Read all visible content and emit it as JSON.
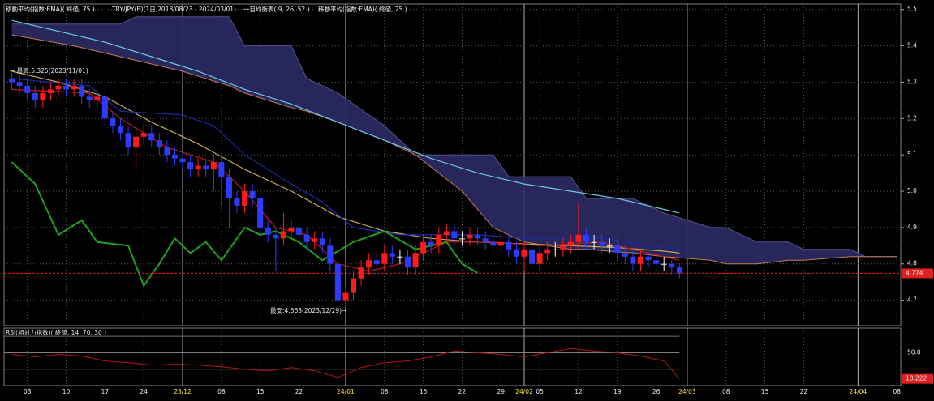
{
  "chart_data": {
    "type": "candlestick",
    "legend": [
      "移動平均(指数:EMA)( 終値, 75 )",
      "TRY/JPY(B)(1日,2018/08/23 - 2024/03/01)",
      "一目均衡表( 9, 26, 52 )",
      "移動平均(指数:EMA)( 終値, 25 )"
    ],
    "high_note": "← 最高:5.325(2023/11/01)",
    "low_note": "最安:4.663(2023/12/29)→",
    "xlim": [
      -1,
      114.5
    ],
    "ylim": [
      4.63,
      5.515
    ],
    "xticks": [
      {
        "value": 2,
        "label": "03"
      },
      {
        "value": 7,
        "label": "10"
      },
      {
        "value": 12,
        "label": "17"
      },
      {
        "value": 17,
        "label": "24"
      },
      {
        "value": 22,
        "label": "23/12"
      },
      {
        "value": 27,
        "label": "08"
      },
      {
        "value": 32,
        "label": "15"
      },
      {
        "value": 37,
        "label": "22"
      },
      {
        "value": 43,
        "label": "24/01"
      },
      {
        "value": 48,
        "label": "08"
      },
      {
        "value": 53,
        "label": "15"
      },
      {
        "value": 58,
        "label": "22"
      },
      {
        "value": 63,
        "label": "29"
      },
      {
        "value": 66,
        "label": "24/02"
      },
      {
        "value": 68,
        "label": "05"
      },
      {
        "value": 73,
        "label": "12"
      },
      {
        "value": 78,
        "label": "19"
      },
      {
        "value": 83,
        "label": "26"
      },
      {
        "value": 87,
        "label": "24/03"
      },
      {
        "value": 92,
        "label": "08"
      },
      {
        "value": 97,
        "label": "15"
      },
      {
        "value": 102,
        "label": "22"
      },
      {
        "value": 109,
        "label": "24/04"
      },
      {
        "value": 114,
        "label": "08"
      }
    ],
    "major_xticks": [
      22,
      43,
      66,
      87,
      109
    ],
    "yticks": [
      5.5,
      5.4,
      5.3,
      5.2,
      5.1,
      {
        "value": 5,
        "label": "5.0"
      },
      4.9,
      4.8,
      4.7
    ],
    "grid": true,
    "candles": {
      "up_color": "#ff1a1a",
      "down_color": "#2b3cff",
      "open": [
        5.31,
        5.3,
        5.29,
        5.27,
        5.25,
        5.27,
        5.28,
        5.29,
        5.28,
        5.29,
        5.26,
        5.25,
        5.26,
        5.2,
        5.18,
        5.16,
        5.12,
        5.15,
        5.16,
        5.14,
        5.12,
        5.1,
        5.09,
        5.08,
        5.06,
        5.07,
        5.06,
        5.08,
        5.04,
        4.98,
        4.96,
        5.0,
        4.98,
        4.9,
        4.88,
        4.87,
        4.89,
        4.9,
        4.88,
        4.86,
        4.87,
        4.85,
        4.8,
        4.7,
        4.72,
        4.76,
        4.79,
        4.81,
        4.8,
        4.83,
        4.82,
        4.82,
        4.79,
        4.83,
        4.86,
        4.85,
        4.88,
        4.89,
        4.87,
        4.87,
        4.88,
        4.87,
        4.86,
        4.85,
        4.86,
        4.84,
        4.82,
        4.84,
        4.8,
        4.83,
        4.84,
        4.84,
        4.85,
        4.86,
        4.88,
        4.86,
        4.86,
        4.85,
        4.85,
        4.83,
        4.82,
        4.8,
        4.82,
        4.81,
        4.8,
        4.8,
        4.79
      ],
      "high": [
        5.325,
        5.32,
        5.31,
        5.29,
        5.29,
        5.3,
        5.31,
        5.31,
        5.31,
        5.31,
        5.28,
        5.28,
        5.28,
        5.22,
        5.2,
        5.18,
        5.17,
        5.18,
        5.18,
        5.16,
        5.14,
        5.12,
        5.11,
        5.1,
        5.09,
        5.09,
        5.1,
        5.1,
        5.06,
        5.0,
        5.02,
        5.02,
        5.0,
        4.92,
        4.9,
        4.94,
        4.92,
        4.92,
        4.9,
        4.89,
        4.89,
        4.87,
        4.82,
        4.74,
        4.78,
        4.81,
        4.83,
        4.83,
        4.85,
        4.85,
        4.84,
        4.84,
        4.85,
        4.88,
        4.88,
        4.9,
        4.91,
        4.91,
        4.89,
        4.9,
        4.9,
        4.89,
        4.88,
        4.88,
        4.88,
        4.86,
        4.86,
        4.86,
        4.85,
        4.86,
        4.86,
        4.87,
        4.88,
        4.97,
        4.9,
        4.88,
        4.88,
        4.87,
        4.87,
        4.85,
        4.84,
        4.84,
        4.83,
        4.83,
        4.82,
        4.81,
        4.8
      ],
      "low": [
        5.28,
        5.27,
        5.25,
        5.23,
        5.23,
        5.25,
        5.26,
        5.26,
        5.26,
        5.24,
        5.23,
        5.23,
        5.18,
        5.16,
        5.14,
        5.1,
        5.06,
        5.13,
        5.12,
        5.1,
        5.08,
        5.07,
        5.06,
        5.04,
        5.04,
        5.04,
        5.0,
        4.96,
        4.9,
        4.94,
        4.94,
        4.96,
        4.88,
        4.86,
        4.78,
        4.85,
        4.87,
        4.86,
        4.84,
        4.84,
        4.83,
        4.78,
        4.663,
        4.68,
        4.7,
        4.74,
        4.77,
        4.78,
        4.78,
        4.8,
        4.8,
        4.77,
        4.77,
        4.81,
        4.83,
        4.83,
        4.86,
        4.85,
        4.85,
        4.85,
        4.85,
        4.84,
        4.83,
        4.83,
        4.82,
        4.8,
        4.78,
        4.78,
        4.78,
        4.81,
        4.82,
        4.82,
        4.83,
        4.84,
        4.84,
        4.84,
        4.83,
        4.83,
        4.81,
        4.8,
        4.78,
        4.78,
        4.79,
        4.78,
        4.78,
        4.77,
        4.76
      ],
      "close": [
        5.3,
        5.29,
        5.27,
        5.25,
        5.27,
        5.28,
        5.29,
        5.28,
        5.29,
        5.26,
        5.25,
        5.26,
        5.2,
        5.18,
        5.16,
        5.12,
        5.15,
        5.16,
        5.14,
        5.12,
        5.1,
        5.09,
        5.08,
        5.06,
        5.07,
        5.06,
        5.08,
        5.04,
        4.98,
        4.96,
        5.0,
        4.98,
        4.9,
        4.88,
        4.87,
        4.89,
        4.9,
        4.88,
        4.86,
        4.87,
        4.85,
        4.8,
        4.7,
        4.72,
        4.76,
        4.79,
        4.81,
        4.8,
        4.83,
        4.82,
        4.82,
        4.79,
        4.83,
        4.86,
        4.85,
        4.88,
        4.89,
        4.87,
        4.87,
        4.88,
        4.87,
        4.86,
        4.85,
        4.86,
        4.84,
        4.82,
        4.84,
        4.8,
        4.83,
        4.84,
        4.84,
        4.85,
        4.86,
        4.88,
        4.86,
        4.86,
        4.85,
        4.85,
        4.83,
        4.82,
        4.8,
        4.82,
        4.81,
        4.8,
        4.8,
        4.79,
        4.774
      ]
    },
    "cloud": {
      "color": "#2b2b66",
      "x": [
        0,
        8,
        14,
        16,
        22,
        28,
        30,
        36,
        38,
        42,
        48,
        52,
        58,
        62,
        64,
        66,
        72,
        74,
        80,
        84,
        90,
        92,
        96,
        100,
        102,
        108,
        110,
        114
      ],
      "span_b": {
        "color": "#5a4f8c",
        "values": [
          5.46,
          5.46,
          5.46,
          5.48,
          5.48,
          5.48,
          5.4,
          5.4,
          5.31,
          5.27,
          5.18,
          5.1,
          5.1,
          5.1,
          5.04,
          5.04,
          5.04,
          4.98,
          4.98,
          4.94,
          4.9,
          4.9,
          4.86,
          4.86,
          4.84,
          4.84,
          4.82,
          4.82
        ]
      },
      "span_a": {
        "color": "#c47a52",
        "values": [
          5.43,
          5.4,
          5.37,
          5.36,
          5.33,
          5.29,
          5.27,
          5.23,
          5.22,
          5.19,
          5.14,
          5.1,
          5.0,
          4.9,
          4.88,
          4.86,
          4.84,
          4.84,
          4.83,
          4.82,
          4.81,
          4.8,
          4.8,
          4.81,
          4.81,
          4.82,
          4.82,
          4.82
        ]
      }
    },
    "lines": [
      {
        "color": "#6ec6e0",
        "x": [
          0,
          6,
          12,
          18,
          24,
          30,
          36,
          42,
          48,
          54,
          60,
          66,
          72,
          78,
          84,
          86
        ],
        "values": [
          5.47,
          5.44,
          5.41,
          5.37,
          5.33,
          5.28,
          5.24,
          5.19,
          5.14,
          5.09,
          5.05,
          5.02,
          5.0,
          4.98,
          4.95,
          4.94
        ]
      },
      {
        "color": "#c8a850",
        "x": [
          0,
          6,
          12,
          18,
          24,
          30,
          36,
          42,
          48,
          54,
          60,
          66,
          72,
          78,
          84,
          86
        ],
        "values": [
          5.33,
          5.3,
          5.26,
          5.19,
          5.13,
          5.06,
          5.0,
          4.93,
          4.89,
          4.87,
          4.86,
          4.855,
          4.85,
          4.845,
          4.835,
          4.83
        ]
      },
      {
        "color": "#1c2aa8",
        "x": [
          0,
          10,
          14,
          22,
          26,
          30,
          36,
          40,
          44,
          50,
          60,
          66,
          76,
          86
        ],
        "values": [
          5.31,
          5.29,
          5.22,
          5.21,
          5.18,
          5.1,
          5.02,
          4.97,
          4.9,
          4.88,
          4.88,
          4.87,
          4.87,
          4.84
        ]
      },
      {
        "color": "#c01818",
        "x": [
          0,
          10,
          14,
          20,
          26,
          30,
          34,
          38,
          42,
          46,
          50,
          56,
          62,
          68,
          76,
          82,
          86
        ],
        "values": [
          5.28,
          5.27,
          5.2,
          5.12,
          5.08,
          5.0,
          4.9,
          4.88,
          4.8,
          4.78,
          4.8,
          4.86,
          4.86,
          4.85,
          4.86,
          4.83,
          4.81
        ]
      },
      {
        "color": "#1fa01f",
        "x": [
          0,
          3,
          6,
          9,
          11,
          15,
          17,
          19,
          21,
          23,
          25,
          27,
          29,
          30,
          32,
          34,
          37,
          40,
          44,
          48,
          52,
          56,
          58,
          60
        ],
        "values": [
          5.08,
          5.02,
          4.88,
          4.92,
          4.86,
          4.85,
          4.74,
          4.8,
          4.87,
          4.83,
          4.86,
          4.81,
          4.87,
          4.9,
          4.88,
          4.89,
          4.86,
          4.81,
          4.86,
          4.89,
          4.84,
          4.86,
          4.8,
          4.775
        ]
      }
    ],
    "last_price": 4.774,
    "price_line_color": "#e02020",
    "rsi": {
      "title": "RSI(相対力指数)( 終値, 14, 70, 30 )",
      "ylim": [
        10,
        80
      ],
      "yticks": [
        {
          "value": 50,
          "label": "50.0"
        }
      ],
      "levels": [
        70,
        30
      ],
      "color": "#b01818",
      "x": [
        0,
        3,
        6,
        9,
        12,
        15,
        18,
        21,
        24,
        27,
        30,
        33,
        36,
        39,
        42,
        45,
        48,
        51,
        54,
        57,
        60,
        63,
        66,
        69,
        72,
        75,
        78,
        81,
        84,
        86
      ],
      "values": [
        48,
        45,
        48,
        46,
        40,
        38,
        35,
        36,
        35,
        33,
        30,
        28,
        32,
        28,
        20,
        32,
        38,
        40,
        45,
        52,
        50,
        48,
        45,
        50,
        55,
        52,
        50,
        46,
        40,
        18.222
      ],
      "last_value": 18.222
    }
  }
}
